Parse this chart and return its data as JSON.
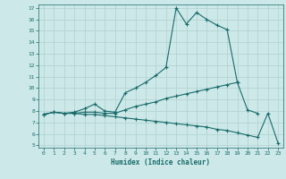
{
  "xlabel": "Humidex (Indice chaleur)",
  "bg_color": "#cce8e8",
  "grid_color": "#b0d0d0",
  "line_color": "#1a6b6b",
  "xlim": [
    -0.5,
    23.5
  ],
  "ylim": [
    4.8,
    17.3
  ],
  "xticks": [
    0,
    1,
    2,
    3,
    4,
    5,
    6,
    7,
    8,
    9,
    10,
    11,
    12,
    13,
    14,
    15,
    16,
    17,
    18,
    19,
    20,
    21,
    22,
    23
  ],
  "yticks": [
    5,
    6,
    7,
    8,
    9,
    10,
    11,
    12,
    13,
    14,
    15,
    16,
    17
  ],
  "line1_x": [
    0,
    1,
    2,
    3,
    4,
    5,
    6,
    7,
    8,
    9,
    10,
    11,
    12,
    13,
    14,
    15,
    16,
    17,
    18,
    19
  ],
  "line1_y": [
    7.7,
    7.9,
    7.8,
    7.9,
    8.2,
    8.6,
    8.0,
    7.9,
    9.6,
    10.0,
    10.5,
    11.1,
    11.8,
    17.0,
    15.6,
    16.6,
    16.0,
    15.5,
    15.1,
    10.5
  ],
  "line2_x": [
    0,
    1,
    2,
    3,
    4,
    5,
    6,
    7,
    8,
    9,
    10,
    11,
    12,
    13,
    14,
    15,
    16,
    17,
    18,
    19,
    20,
    21
  ],
  "line2_y": [
    7.7,
    7.9,
    7.8,
    7.8,
    7.9,
    7.9,
    7.8,
    7.8,
    8.1,
    8.4,
    8.6,
    8.8,
    9.1,
    9.3,
    9.5,
    9.7,
    9.9,
    10.1,
    10.3,
    10.5,
    8.1,
    7.8
  ],
  "line3_x": [
    0,
    1,
    2,
    3,
    4,
    5,
    6,
    7,
    8,
    9,
    10,
    11,
    12,
    13,
    14,
    15,
    16,
    17,
    18,
    19,
    20,
    21,
    22,
    23
  ],
  "line3_y": [
    7.7,
    7.9,
    7.8,
    7.8,
    7.7,
    7.7,
    7.6,
    7.5,
    7.4,
    7.3,
    7.2,
    7.1,
    7.0,
    6.9,
    6.8,
    6.7,
    6.6,
    6.4,
    6.3,
    6.1,
    5.9,
    5.7,
    7.8,
    5.2
  ]
}
